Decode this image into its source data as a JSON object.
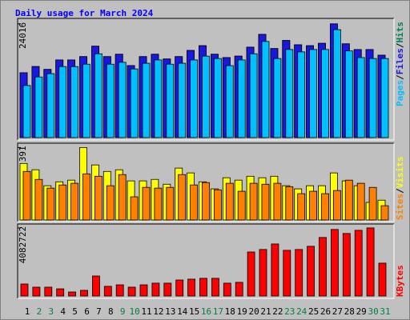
{
  "chart_data": {
    "type": "bar",
    "title": "Daily usage for March 2024",
    "categories": [
      "1",
      "2",
      "3",
      "4",
      "5",
      "6",
      "7",
      "8",
      "9",
      "10",
      "11",
      "12",
      "13",
      "14",
      "15",
      "16",
      "17",
      "18",
      "19",
      "20",
      "21",
      "22",
      "23",
      "24",
      "25",
      "26",
      "27",
      "28",
      "29",
      "30",
      "31"
    ],
    "category_colors": [
      "#000000",
      "#008040",
      "#008040",
      "#000000",
      "#000000",
      "#000000",
      "#000000",
      "#000000",
      "#008040",
      "#008040",
      "#000000",
      "#000000",
      "#000000",
      "#000000",
      "#000000",
      "#008040",
      "#008040",
      "#000000",
      "#000000",
      "#000000",
      "#000000",
      "#000000",
      "#008040",
      "#008040",
      "#000000",
      "#000000",
      "#000000",
      "#000000",
      "#000000",
      "#008040",
      "#008040"
    ],
    "legend_separator": "/",
    "panels": [
      {
        "ylim": [
          0,
          25000
        ],
        "yticks": [
          24016
        ],
        "series": [
          {
            "name": "Hits",
            "color": "#00805c",
            "offset": 0,
            "values": [
              13700,
              15000,
              14400,
              16400,
              16400,
              17100,
              19300,
              17100,
              17600,
              15200,
              17100,
              17600,
              16600,
              17100,
              18400,
              19400,
              17600,
              16900,
              17200,
              19100,
              21800,
              18800,
              20500,
              19600,
              19400,
              19900,
              24016,
              19800,
              18600,
              18600,
              17400
            ]
          },
          {
            "name": "Files",
            "color": "#1818e0",
            "offset": 0,
            "values": [
              13700,
              15000,
              14400,
              16400,
              16400,
              17100,
              19300,
              17100,
              17600,
              15200,
              17100,
              17600,
              16600,
              17100,
              18400,
              19400,
              17600,
              16900,
              17200,
              19100,
              21800,
              18800,
              20500,
              19600,
              19400,
              19900,
              24016,
              19800,
              18600,
              18600,
              17400
            ]
          },
          {
            "name": "Pages",
            "color": "#00c0ff",
            "offset": 4,
            "values": [
              11000,
              12800,
              13500,
              15000,
              15000,
              15500,
              17700,
              15500,
              15900,
              14500,
              15700,
              16400,
              15500,
              15700,
              16400,
              17200,
              16700,
              15200,
              16400,
              17700,
              20300,
              16700,
              18600,
              18100,
              18600,
              18600,
              22800,
              18300,
              16900,
              16700,
              16700
            ]
          }
        ]
      },
      {
        "ylim": [
          0,
          410
        ],
        "yticks": [
          391
        ],
        "series": [
          {
            "name": "Visits",
            "color": "#ffff00",
            "offset": 0,
            "values": [
              305,
              271,
              185,
              206,
              215,
              391,
              297,
              262,
              271,
              211,
              211,
              219,
              193,
              280,
              254,
              206,
              168,
              228,
              215,
              236,
              228,
              236,
              185,
              168,
              185,
              185,
              254,
              211,
              185,
              95,
              107
            ]
          },
          {
            "name": "Sites",
            "color": "#ff8000",
            "offset": 4,
            "values": [
              262,
              219,
              172,
              189,
              198,
              249,
              236,
              185,
              245,
              125,
              176,
              172,
              176,
              245,
              189,
              202,
              163,
              198,
              155,
              198,
              193,
              198,
              180,
              142,
              155,
              142,
              159,
              215,
              198,
              176,
              77
            ]
          }
        ]
      },
      {
        "ylim": [
          0,
          4270000
        ],
        "yticks": [
          4082722
        ],
        "series": [
          {
            "name": "KBytes",
            "color": "#ff0000",
            "offset": 1,
            "values": [
              720000,
              530000,
              530000,
              430000,
              240000,
              340000,
              1200000,
              580000,
              670000,
              530000,
              670000,
              770000,
              770000,
              960000,
              1010000,
              1060000,
              1060000,
              770000,
              820000,
              2640000,
              2790000,
              3120000,
              2740000,
              2790000,
              2980000,
              3510000,
              3990000,
              3750000,
              3940000,
              4082722,
              1970000
            ]
          }
        ]
      }
    ]
  }
}
